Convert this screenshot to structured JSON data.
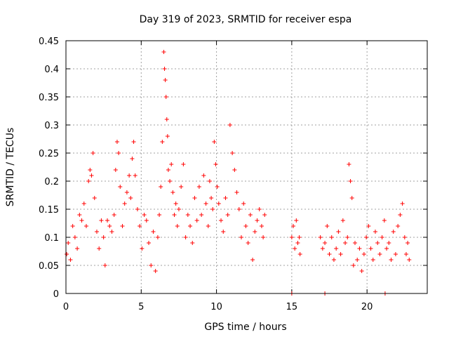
{
  "chart_data": {
    "type": "scatter",
    "title": "Day 319 of 2023, SRMTID for receiver espa",
    "xlabel": "GPS time / hours",
    "ylabel": "SRMTID / TECUs",
    "xlim": [
      0,
      24
    ],
    "ylim": [
      0,
      0.45
    ],
    "xticks": [
      0,
      5,
      10,
      15,
      20
    ],
    "xtick_labels": [
      "0",
      "5",
      "10",
      "15",
      "20"
    ],
    "yticks": [
      0,
      0.05,
      0.1,
      0.15,
      0.2,
      0.25,
      0.3,
      0.35,
      0.4,
      0.45
    ],
    "ytick_labels": [
      "0",
      "0.05",
      "0.1",
      "0.15",
      "0.2",
      "0.25",
      "0.3",
      "0.35",
      "0.4",
      "0.45"
    ],
    "grid": true,
    "marker": "plus",
    "series": [
      {
        "name": "SRMTID",
        "color": "#ff0000",
        "x": [
          0.05,
          0.15,
          0.3,
          0.45,
          0.6,
          0.75,
          0.9,
          1.05,
          1.2,
          1.35,
          1.5,
          1.6,
          1.7,
          1.8,
          1.9,
          2.05,
          2.2,
          2.35,
          2.5,
          2.6,
          2.75,
          2.9,
          3.05,
          3.2,
          3.3,
          3.4,
          3.5,
          3.6,
          3.75,
          3.9,
          4.05,
          4.2,
          4.3,
          4.4,
          4.5,
          4.6,
          4.75,
          4.9,
          5.05,
          5.2,
          5.35,
          5.5,
          5.65,
          5.8,
          5.95,
          6.1,
          6.2,
          6.3,
          6.4,
          6.5,
          6.55,
          6.6,
          6.65,
          6.7,
          6.75,
          6.8,
          6.9,
          7.0,
          7.1,
          7.2,
          7.3,
          7.4,
          7.5,
          7.65,
          7.8,
          7.95,
          8.1,
          8.25,
          8.4,
          8.55,
          8.7,
          8.85,
          9.0,
          9.15,
          9.3,
          9.45,
          9.55,
          9.65,
          9.75,
          9.85,
          9.95,
          10.05,
          10.15,
          10.3,
          10.45,
          10.6,
          10.75,
          10.9,
          11.05,
          11.2,
          11.35,
          11.5,
          11.65,
          11.8,
          11.95,
          12.1,
          12.25,
          12.4,
          12.55,
          12.7,
          12.85,
          13.0,
          13.1,
          13.2,
          15.0,
          15.1,
          15.2,
          15.3,
          15.4,
          15.5,
          15.55,
          16.9,
          17.05,
          17.2,
          17.35,
          17.5,
          17.65,
          17.8,
          17.95,
          18.1,
          18.25,
          18.4,
          18.55,
          18.7,
          18.8,
          18.9,
          19.0,
          19.1,
          19.2,
          19.35,
          19.5,
          19.65,
          19.8,
          19.95,
          20.1,
          20.25,
          20.4,
          20.55,
          20.7,
          20.85,
          21.0,
          21.15,
          21.3,
          21.45,
          21.6,
          21.75,
          21.9,
          22.05,
          22.2,
          22.35,
          22.5,
          22.6,
          22.7,
          22.8,
          15.0,
          17.2,
          21.2
        ],
        "y": [
          0.07,
          0.09,
          0.06,
          0.12,
          0.1,
          0.08,
          0.14,
          0.13,
          0.16,
          0.12,
          0.2,
          0.22,
          0.21,
          0.25,
          0.17,
          0.11,
          0.08,
          0.13,
          0.1,
          0.05,
          0.13,
          0.12,
          0.11,
          0.14,
          0.22,
          0.27,
          0.25,
          0.19,
          0.12,
          0.16,
          0.18,
          0.21,
          0.17,
          0.24,
          0.27,
          0.21,
          0.15,
          0.12,
          0.08,
          0.14,
          0.13,
          0.09,
          0.05,
          0.11,
          0.04,
          0.1,
          0.14,
          0.19,
          0.27,
          0.43,
          0.4,
          0.38,
          0.35,
          0.31,
          0.28,
          0.22,
          0.2,
          0.23,
          0.18,
          0.14,
          0.16,
          0.12,
          0.15,
          0.19,
          0.23,
          0.1,
          0.14,
          0.12,
          0.09,
          0.17,
          0.13,
          0.19,
          0.14,
          0.21,
          0.16,
          0.12,
          0.2,
          0.17,
          0.15,
          0.27,
          0.23,
          0.19,
          0.16,
          0.13,
          0.11,
          0.17,
          0.14,
          0.3,
          0.25,
          0.22,
          0.18,
          0.15,
          0.1,
          0.16,
          0.12,
          0.09,
          0.14,
          0.06,
          0.11,
          0.13,
          0.15,
          0.12,
          0.1,
          0.14,
          0.1,
          0.12,
          0.08,
          0.13,
          0.09,
          0.1,
          0.07,
          0.1,
          0.08,
          0.09,
          0.12,
          0.07,
          0.1,
          0.06,
          0.08,
          0.11,
          0.07,
          0.13,
          0.09,
          0.1,
          0.23,
          0.2,
          0.17,
          0.05,
          0.09,
          0.06,
          0.08,
          0.04,
          0.07,
          0.1,
          0.12,
          0.08,
          0.06,
          0.11,
          0.09,
          0.07,
          0.1,
          0.13,
          0.08,
          0.09,
          0.06,
          0.11,
          0.07,
          0.12,
          0.14,
          0.16,
          0.1,
          0.07,
          0.09,
          0.06,
          0,
          0,
          0
        ]
      }
    ]
  }
}
